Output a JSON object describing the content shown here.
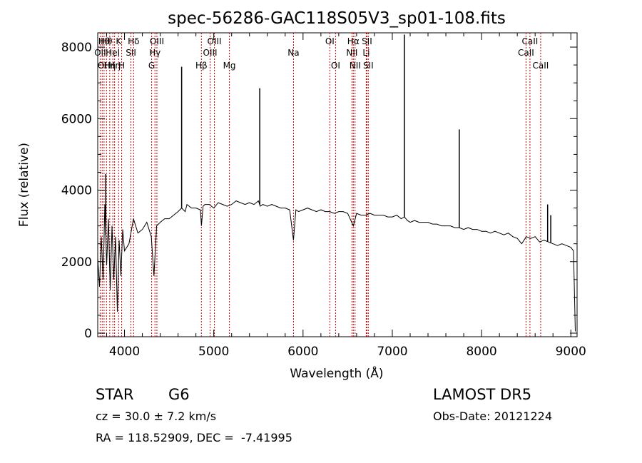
{
  "chart_data": {
    "type": "line",
    "title": "spec-56286-GAC118S05V3_sp01-108.fits",
    "xlabel": "Wavelength (Å)",
    "ylabel": "Flux (relative)",
    "xlim": [
      3700,
      9070
    ],
    "ylim": [
      -100,
      8400
    ],
    "xticks": [
      4000,
      5000,
      6000,
      7000,
      8000,
      9000
    ],
    "yticks": [
      0,
      2000,
      4000,
      6000,
      8000
    ],
    "grid": false,
    "line_color": "#000000",
    "marker_color": "#c00000",
    "spectrum": {
      "x": [
        3700,
        3720,
        3740,
        3760,
        3780,
        3800,
        3820,
        3840,
        3860,
        3880,
        3900,
        3920,
        3940,
        3960,
        3980,
        4000,
        4050,
        4100,
        4150,
        4200,
        4250,
        4300,
        4330,
        4360,
        4400,
        4450,
        4500,
        4550,
        4600,
        4640,
        4680,
        4700,
        4750,
        4800,
        4850,
        4862,
        4880,
        4900,
        4950,
        5000,
        5050,
        5100,
        5150,
        5200,
        5250,
        5300,
        5350,
        5400,
        5450,
        5500,
        5520,
        5550,
        5600,
        5650,
        5700,
        5750,
        5800,
        5850,
        5893,
        5920,
        5950,
        6000,
        6050,
        6100,
        6150,
        6200,
        6250,
        6300,
        6350,
        6400,
        6450,
        6500,
        6563,
        6600,
        6650,
        6700,
        6750,
        6800,
        6850,
        6900,
        6950,
        7000,
        7050,
        7100,
        7135,
        7170,
        7200,
        7250,
        7300,
        7350,
        7400,
        7450,
        7500,
        7550,
        7600,
        7650,
        7700,
        7750,
        7800,
        7850,
        7900,
        7950,
        8000,
        8050,
        8100,
        8150,
        8200,
        8250,
        8300,
        8350,
        8400,
        8450,
        8500,
        8550,
        8600,
        8650,
        8700,
        8750,
        8800,
        8850,
        8900,
        8950,
        9000,
        9030,
        9050
      ],
      "y": [
        2100,
        1300,
        2700,
        1500,
        3600,
        1900,
        3200,
        1200,
        3000,
        1500,
        2700,
        600,
        2600,
        1600,
        2900,
        2300,
        2500,
        3200,
        2800,
        2900,
        3100,
        2700,
        1600,
        3000,
        3100,
        3200,
        3200,
        3300,
        3400,
        3500,
        3400,
        3600,
        3500,
        3500,
        3450,
        3000,
        3550,
        3600,
        3600,
        3500,
        3650,
        3600,
        3550,
        3600,
        3700,
        3650,
        3600,
        3650,
        3600,
        3700,
        3550,
        3600,
        3550,
        3600,
        3550,
        3500,
        3500,
        3450,
        2600,
        3450,
        3400,
        3450,
        3500,
        3450,
        3400,
        3450,
        3400,
        3400,
        3350,
        3400,
        3400,
        3350,
        3000,
        3350,
        3300,
        3300,
        3350,
        3300,
        3300,
        3300,
        3250,
        3250,
        3300,
        3200,
        3250,
        3150,
        3100,
        3150,
        3100,
        3100,
        3100,
        3050,
        3050,
        3000,
        3000,
        3000,
        2950,
        2950,
        2900,
        2950,
        2900,
        2900,
        2850,
        2850,
        2800,
        2850,
        2800,
        2750,
        2800,
        2700,
        2650,
        2500,
        2700,
        2650,
        2700,
        2550,
        2600,
        2550,
        2500,
        2450,
        2500,
        2450,
        2400,
        2300,
        50
      ]
    },
    "emission_spikes": [
      {
        "x": 3790,
        "y": 4450
      },
      {
        "x": 4640,
        "y": 7450
      },
      {
        "x": 5515,
        "y": 6850
      },
      {
        "x": 7135,
        "y": 8350
      },
      {
        "x": 7750,
        "y": 5700
      },
      {
        "x": 8740,
        "y": 3600
      },
      {
        "x": 8775,
        "y": 3300
      }
    ],
    "line_markers": [
      {
        "x": 3727,
        "row": 2,
        "label": "OII"
      },
      {
        "x": 3750,
        "row": 3,
        "label": "OI"
      },
      {
        "x": 3771,
        "row": 1,
        "label": "Hθ"
      },
      {
        "x": 3798,
        "row": 1,
        "label": "Hθ"
      },
      {
        "x": 3835,
        "row": 3,
        "label": "Hη"
      },
      {
        "x": 3869,
        "row": 2,
        "label": "HeI"
      },
      {
        "x": 3889,
        "row": 3,
        "label": "Hη"
      },
      {
        "x": 3934,
        "row": 1,
        "label": "K"
      },
      {
        "x": 3968,
        "row": 3,
        "label": "H"
      },
      {
        "x": 4072,
        "row": 2,
        "label": "SII"
      },
      {
        "x": 4102,
        "row": 1,
        "label": "Hδ"
      },
      {
        "x": 4304,
        "row": 3,
        "label": "G"
      },
      {
        "x": 4341,
        "row": 2,
        "label": "Hγ"
      },
      {
        "x": 4363,
        "row": 1,
        "label": "OIII"
      },
      {
        "x": 4861,
        "row": 3,
        "label": "Hβ"
      },
      {
        "x": 4959,
        "row": 2,
        "label": "OIII"
      },
      {
        "x": 5007,
        "row": 1,
        "label": "OIII"
      },
      {
        "x": 5175,
        "row": 3,
        "label": "Mg"
      },
      {
        "x": 5893,
        "row": 2,
        "label": "Na"
      },
      {
        "x": 6300,
        "row": 1,
        "label": "OI"
      },
      {
        "x": 6364,
        "row": 3,
        "label": "OI"
      },
      {
        "x": 6548,
        "row": 2,
        "label": "NII"
      },
      {
        "x": 6563,
        "row": 1,
        "label": "Hα"
      },
      {
        "x": 6583,
        "row": 3,
        "label": "NII"
      },
      {
        "x": 6708,
        "row": 2,
        "label": "Li"
      },
      {
        "x": 6716,
        "row": 1,
        "label": "SII"
      },
      {
        "x": 6731,
        "row": 3,
        "label": "SII"
      },
      {
        "x": 8498,
        "row": 2,
        "label": "CaII"
      },
      {
        "x": 8542,
        "row": 1,
        "label": "CaII"
      },
      {
        "x": 8662,
        "row": 3,
        "label": "CaII"
      }
    ]
  },
  "info": {
    "class_label": "STAR",
    "subclass_label": "G6",
    "survey": "LAMOST DR5",
    "cz_line": "cz = 30.0 ± 7.2 km/s",
    "obs_date_line": "Obs-Date: 20121224",
    "coords_line": "RA = 118.52909, DEC =  -7.41995"
  }
}
